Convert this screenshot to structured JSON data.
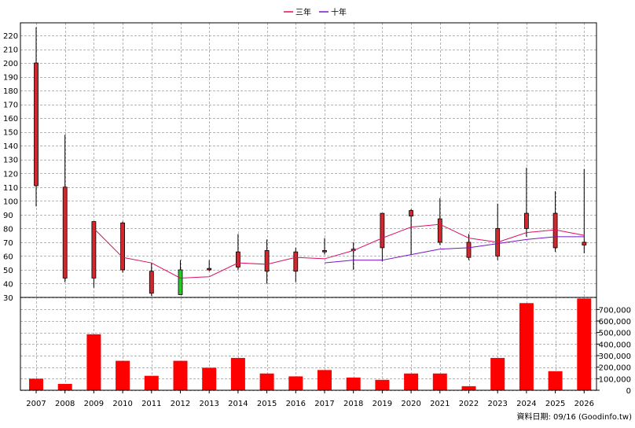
{
  "legend": [
    {
      "label": "三年",
      "color": "#dc0f64"
    },
    {
      "label": "十年",
      "color": "#7814c8"
    }
  ],
  "footer": "資料日期: 09/16 (Goodinfo.tw)",
  "colors": {
    "up": "#d2282d",
    "down": "#28c828",
    "volume": "#ff0000",
    "ma3": "#dc0f64",
    "ma10": "#7814c8"
  },
  "chart_data": [
    {
      "type": "candlestick",
      "x": [
        "2007",
        "2008",
        "2009",
        "2010",
        "2011",
        "2012",
        "2013",
        "2014",
        "2015",
        "2016",
        "2017",
        "2018",
        "2019",
        "2020",
        "2021",
        "2022",
        "2023",
        "2024",
        "2025",
        "2026"
      ],
      "ylim": [
        30,
        225
      ],
      "yticks": [
        30,
        40,
        50,
        60,
        70,
        80,
        90,
        100,
        110,
        120,
        130,
        140,
        150,
        160,
        170,
        180,
        190,
        200,
        210,
        220
      ],
      "grid": true,
      "ohlc": [
        {
          "x": "2007",
          "open": 111,
          "high": 226,
          "low": 96,
          "close": 200
        },
        {
          "x": "2008",
          "open": 44,
          "high": 148,
          "low": 41,
          "close": 110
        },
        {
          "x": "2009",
          "open": 44,
          "high": 84,
          "low": 37,
          "close": 85
        },
        {
          "x": "2010",
          "open": 50,
          "high": 85,
          "low": 48,
          "close": 84
        },
        {
          "x": "2011",
          "open": 33,
          "high": 55,
          "low": 31,
          "close": 49
        },
        {
          "x": "2012",
          "open": 50,
          "high": 57,
          "low": 32,
          "close": 32
        },
        {
          "x": "2013",
          "open": 50,
          "high": 57,
          "low": 49,
          "close": 51
        },
        {
          "x": "2014",
          "open": 52,
          "high": 76,
          "low": 50,
          "close": 63
        },
        {
          "x": "2015",
          "open": 49,
          "high": 72,
          "low": 40,
          "close": 64
        },
        {
          "x": "2016",
          "open": 49,
          "high": 66,
          "low": 41,
          "close": 63
        },
        {
          "x": "2017",
          "open": 63,
          "high": 73,
          "low": 61,
          "close": 64
        },
        {
          "x": "2018",
          "open": 64,
          "high": 70,
          "low": 50,
          "close": 65
        },
        {
          "x": "2019",
          "open": 66,
          "high": 91,
          "low": 56,
          "close": 91
        },
        {
          "x": "2020",
          "open": 89,
          "high": 94,
          "low": 61,
          "close": 93
        },
        {
          "x": "2021",
          "open": 70,
          "high": 102,
          "low": 68,
          "close": 87
        },
        {
          "x": "2022",
          "open": 59,
          "high": 76,
          "low": 57,
          "close": 70
        },
        {
          "x": "2023",
          "open": 60,
          "high": 98,
          "low": 57,
          "close": 80
        },
        {
          "x": "2024",
          "open": 80,
          "high": 124,
          "low": 74,
          "close": 91
        },
        {
          "x": "2025",
          "open": 66,
          "high": 107,
          "low": 63,
          "close": 91
        },
        {
          "x": "2026",
          "open": 68,
          "high": 123,
          "low": 62,
          "close": 70
        }
      ],
      "series": [
        {
          "name": "三年",
          "values": [
            null,
            null,
            80,
            59,
            55,
            44,
            45,
            55,
            54,
            59,
            58,
            64,
            73,
            81,
            83,
            73,
            70,
            77,
            79,
            75
          ]
        },
        {
          "name": "十年",
          "values": [
            null,
            null,
            null,
            null,
            null,
            null,
            null,
            null,
            null,
            null,
            55,
            57,
            57,
            61,
            65,
            66,
            69,
            72,
            74,
            74
          ]
        }
      ]
    },
    {
      "type": "bar",
      "x": [
        "2007",
        "2008",
        "2009",
        "2010",
        "2011",
        "2012",
        "2013",
        "2014",
        "2015",
        "2016",
        "2017",
        "2018",
        "2019",
        "2020",
        "2021",
        "2022",
        "2023",
        "2024",
        "2025",
        "2026"
      ],
      "values": [
        100000,
        55000,
        485000,
        255000,
        125000,
        255000,
        195000,
        280000,
        145000,
        120000,
        175000,
        110000,
        90000,
        145000,
        145000,
        35000,
        280000,
        755000,
        165000,
        795000
      ],
      "ylim": [
        0,
        800000
      ],
      "yticks": [
        0,
        100000,
        200000,
        300000,
        400000,
        500000,
        600000,
        700000
      ],
      "ytick_labels": [
        "0",
        "100,000",
        "200,000",
        "300,000",
        "400,000",
        "500,000",
        "600,000",
        "700,000"
      ],
      "grid": true
    }
  ]
}
